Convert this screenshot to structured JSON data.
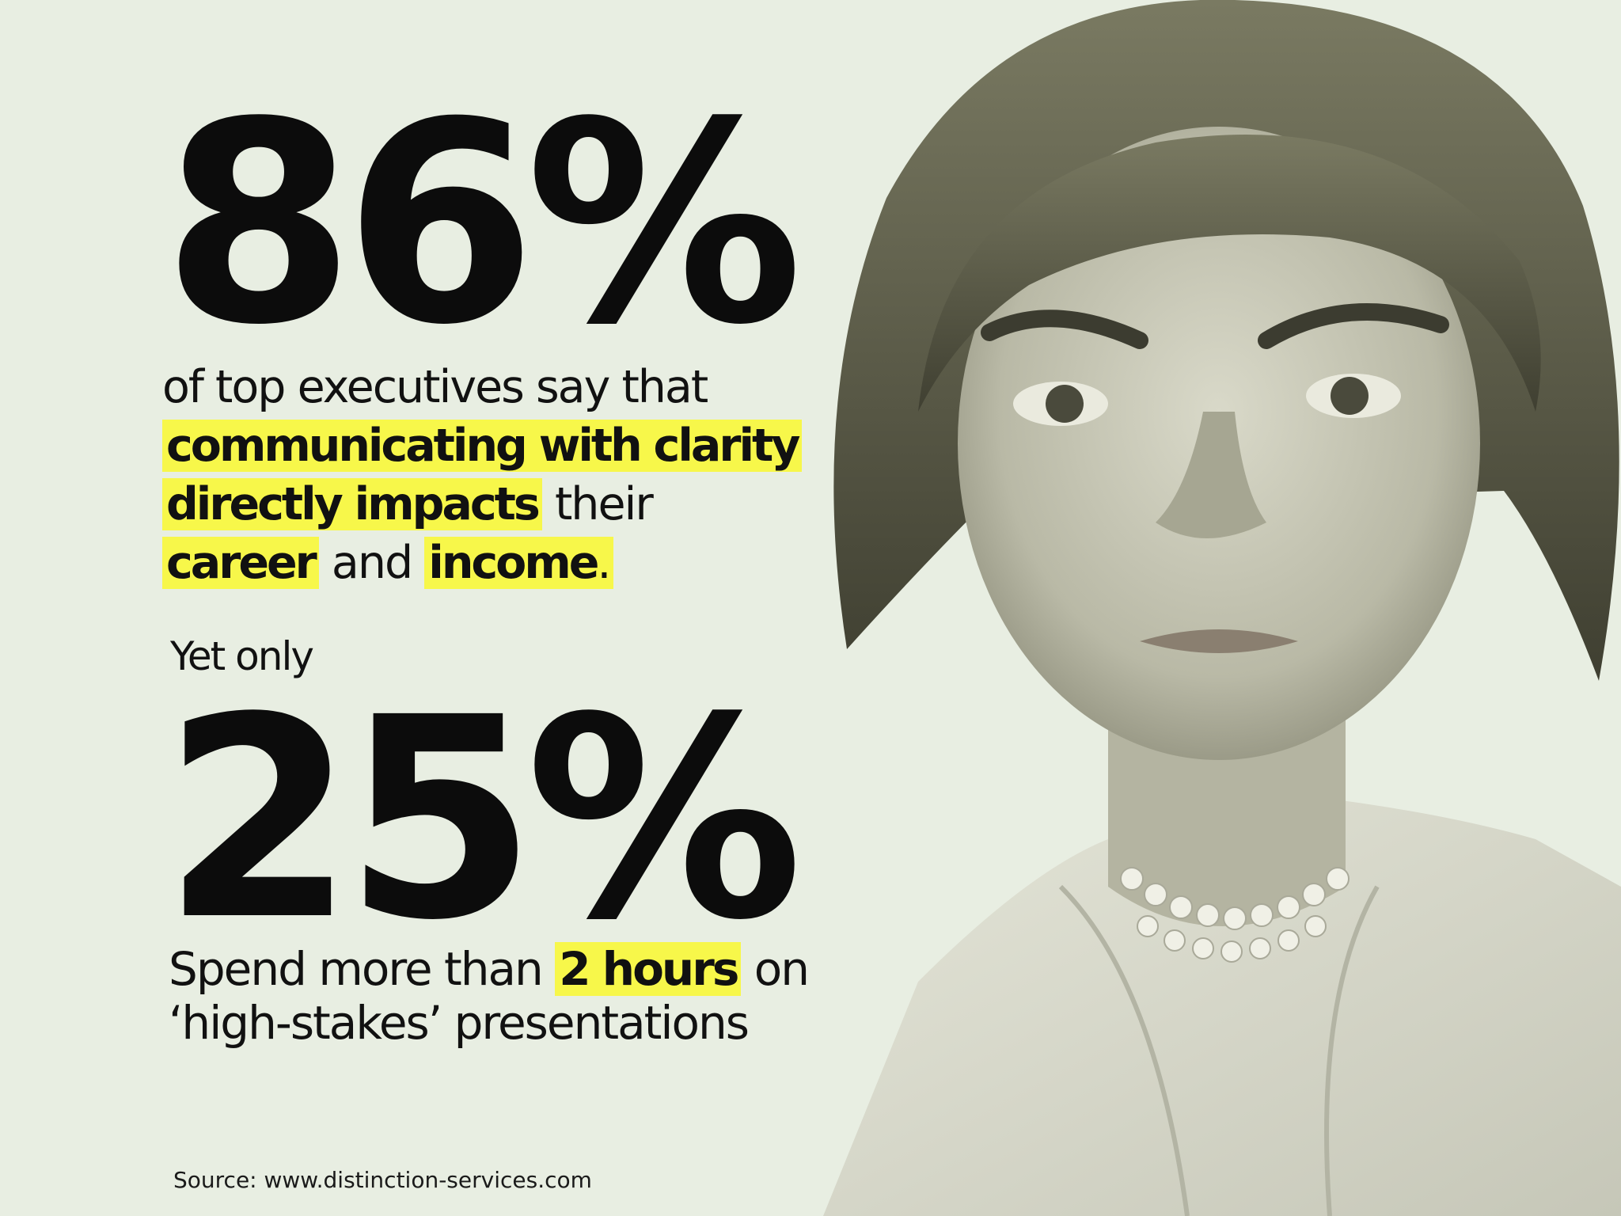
{
  "stat1": {
    "value": "86%",
    "line1": "of top executives say that",
    "hl1": "communicating with clarity",
    "hl2": "directly impacts",
    "mid": " their",
    "hl3": "career",
    "and": " and ",
    "hl4": "income",
    "period": "."
  },
  "transition": "Yet only",
  "stat2": {
    "value": "25%",
    "pre": "Spend more than ",
    "hl": "2 hours",
    "post": " on",
    "line2": "‘high-stakes’ presentations"
  },
  "source": "Source: www.distinction-services.com",
  "colors": {
    "background": "#e8eee2",
    "highlight": "#f7f74a",
    "text": "#111111"
  }
}
